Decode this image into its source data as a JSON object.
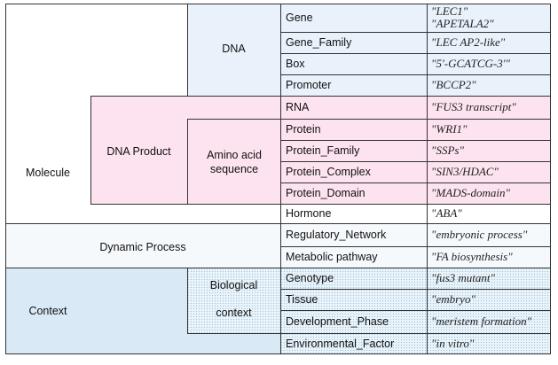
{
  "categories": {
    "molecule": "Molecule",
    "dna": "DNA",
    "dna_product": "DNA Product",
    "amino_acid": "Amino acid sequence",
    "dynamic_process": "Dynamic Process",
    "context": "Context",
    "biological_context_1": "Biological",
    "biological_context_2": "context"
  },
  "rows": [
    {
      "entity": "Gene",
      "example": [
        "\"LEC1\"",
        "\"APETALA2\""
      ]
    },
    {
      "entity": "Gene_Family",
      "example": [
        "\"LEC AP2-like\""
      ]
    },
    {
      "entity": "Box",
      "example": [
        "\"5'-GCATCG-3'\""
      ]
    },
    {
      "entity": "Promoter",
      "example": [
        "\"BCCP2\""
      ]
    },
    {
      "entity": "RNA",
      "example": [
        "\"FUS3 transcript\""
      ]
    },
    {
      "entity": "Protein",
      "example": [
        "\"WRI1\""
      ]
    },
    {
      "entity": "Protein_Family",
      "example": [
        "\"SSPs\""
      ]
    },
    {
      "entity": "Protein_Complex",
      "example": [
        "\"SIN3/HDAC\""
      ]
    },
    {
      "entity": "Protein_Domain",
      "example": [
        "\"MADS-domain\""
      ]
    },
    {
      "entity": "Hormone",
      "example": [
        "\"ABA\""
      ]
    },
    {
      "entity": "Regulatory_Network",
      "example": [
        "\"embryonic process\""
      ]
    },
    {
      "entity": "Metabolic pathway",
      "example": [
        "\"FA biosynthesis\""
      ]
    },
    {
      "entity": "Genotype",
      "example": [
        "\"fus3 mutant\""
      ]
    },
    {
      "entity": "Tissue",
      "example": [
        "\"embryo\""
      ]
    },
    {
      "entity": "Development_Phase",
      "example": [
        "\"meristem formation\""
      ]
    },
    {
      "entity": "Environmental_Factor",
      "example": [
        "\"in vitro\""
      ]
    }
  ]
}
